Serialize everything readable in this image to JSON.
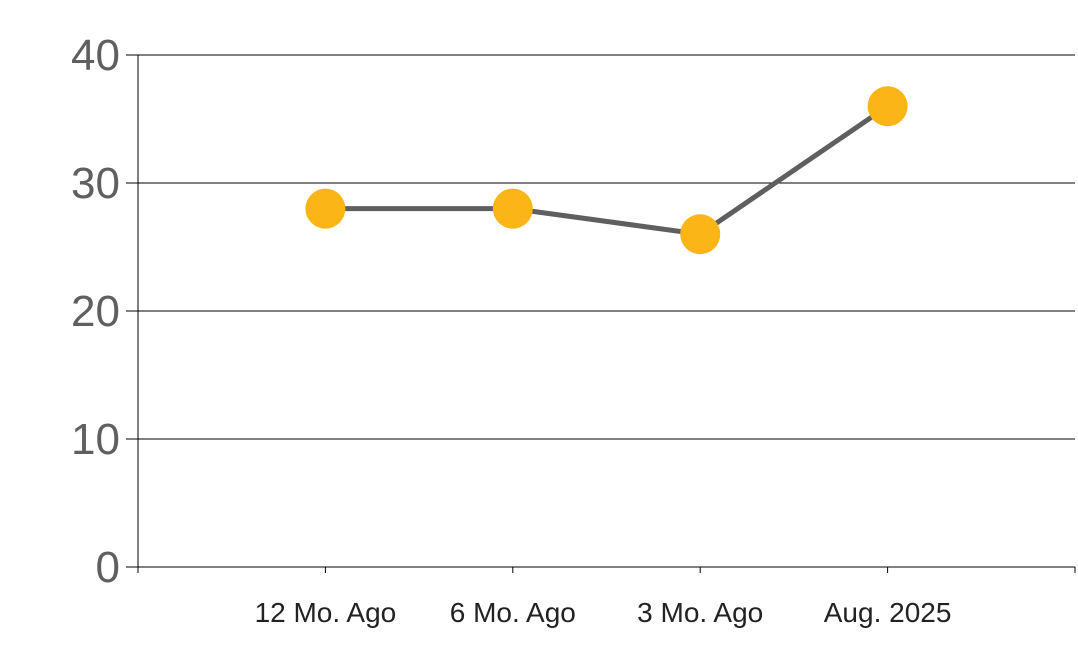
{
  "chart_data": {
    "type": "line",
    "categories": [
      "12 Mo. Ago",
      "6 Mo. Ago",
      "3 Mo. Ago",
      "Aug. 2025"
    ],
    "series": [
      {
        "values": [
          28,
          28,
          26,
          36
        ]
      }
    ],
    "ylim": [
      0,
      40
    ],
    "yticks": [
      0,
      10,
      20,
      30,
      40
    ],
    "grid": true,
    "legend": "none",
    "colors": {
      "line": "#5f5f5f",
      "marker": "#fbb516",
      "grid": "#000000"
    }
  }
}
